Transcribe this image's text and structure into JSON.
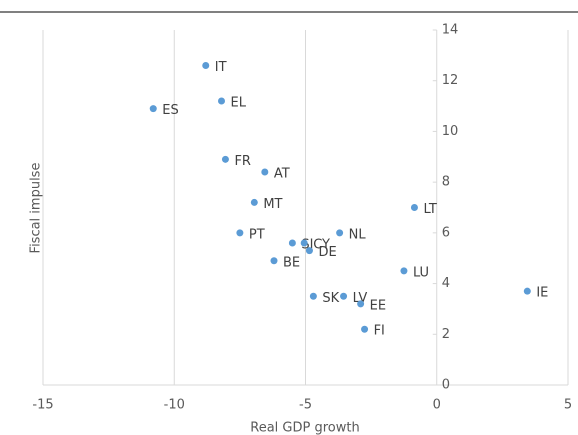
{
  "chart_data": {
    "type": "scatter",
    "x_label": "Real GDP growth",
    "y_label": "Fiscal impulse",
    "labels": [
      "IT",
      "EL",
      "ES",
      "FR",
      "AT",
      "MT",
      "LT",
      "NL",
      "PT",
      "SI",
      "CY",
      "DE",
      "BE",
      "LU",
      "IE",
      "SK",
      "LV",
      "EE",
      "FI"
    ],
    "x": [
      -8.8,
      -8.2,
      -10.8,
      -8.05,
      -6.55,
      -6.95,
      -0.85,
      -3.7,
      -7.5,
      -5.5,
      -5.05,
      -4.85,
      -6.2,
      -1.25,
      3.45,
      -4.7,
      -3.55,
      -2.9,
      -2.75
    ],
    "values": [
      12.6,
      11.2,
      10.9,
      8.9,
      8.4,
      7.2,
      7.0,
      6.0,
      6.0,
      5.6,
      5.6,
      5.3,
      4.9,
      4.5,
      3.7,
      3.5,
      3.5,
      3.2,
      2.2
    ],
    "color": "#5b9bd5",
    "xlim": [
      -15,
      5
    ],
    "xticks": [
      -15,
      -10,
      -5,
      0,
      5
    ],
    "ylim": [
      0,
      14
    ],
    "yticks": [
      0,
      2,
      4,
      6,
      8,
      10,
      12,
      14
    ],
    "grid": true
  }
}
